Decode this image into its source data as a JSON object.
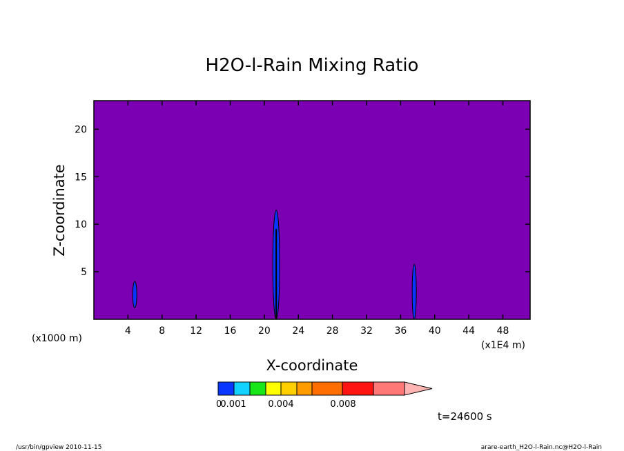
{
  "chart_data": {
    "type": "heatmap",
    "title": "H2O-l-Rain Mixing Ratio",
    "xlabel": "X-coordinate",
    "ylabel": "Z-coordinate",
    "x_unit": "(x1E4 m)",
    "y_unit": "(x1000 m)",
    "xlim": [
      0,
      51.2
    ],
    "ylim": [
      0,
      23
    ],
    "x_ticks": [
      "4",
      "8",
      "12",
      "16",
      "20",
      "24",
      "28",
      "32",
      "36",
      "40",
      "44",
      "48"
    ],
    "y_ticks": [
      "5",
      "10",
      "15",
      "20"
    ],
    "background_color": "#7b00b4",
    "colorbar": {
      "colors": [
        "#0a37ff",
        "#13d2ff",
        "#19e619",
        "#ffff00",
        "#ffd000",
        "#ff9d00",
        "#ff6e00",
        "#ff1414",
        "#ff7878",
        "#ffb4b4"
      ],
      "labels": [
        "0.001",
        "0.004",
        "0.008"
      ],
      "label_extra": "0"
    },
    "features": [
      {
        "x": 4.8,
        "z_min": 1.2,
        "z_max": 4.0,
        "color": "#0a37ff"
      },
      {
        "x": 21.4,
        "z_min": 0,
        "z_max": 11.5,
        "color": "#0a37ff"
      },
      {
        "x": 37.6,
        "z_min": 0,
        "z_max": 5.8,
        "color": "#0a37ff"
      }
    ]
  },
  "time_label": "t=24600 s",
  "footer": {
    "left": "/usr/bin/gpview  2010-11-15",
    "right": "arare-earth_H2O-l-Rain.nc@H2O-l-Rain"
  }
}
